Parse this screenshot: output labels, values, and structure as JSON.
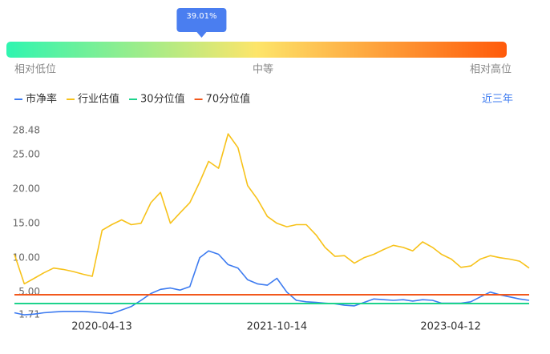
{
  "gauge": {
    "marker": {
      "value": 39.01,
      "label": "39.01%"
    },
    "low_label": "相对低位",
    "mid_label": "中等",
    "high_label": "相对高位"
  },
  "range_label": "近三年",
  "chart_data": {
    "type": "line",
    "x": [
      "2019-07-14",
      "2019-08-14",
      "2019-09-14",
      "2019-10-14",
      "2019-11-14",
      "2019-12-14",
      "2020-01-14",
      "2020-02-14",
      "2020-03-14",
      "2020-04-14",
      "2020-05-14",
      "2020-06-14",
      "2020-07-14",
      "2020-08-14",
      "2020-09-14",
      "2020-10-14",
      "2020-11-14",
      "2020-12-14",
      "2021-01-14",
      "2021-02-14",
      "2021-03-14",
      "2021-04-14",
      "2021-05-14",
      "2021-06-14",
      "2021-07-14",
      "2021-08-14",
      "2021-09-14",
      "2021-10-14",
      "2021-11-14",
      "2021-12-14",
      "2022-01-14",
      "2022-02-14",
      "2022-03-14",
      "2022-04-14",
      "2022-05-14",
      "2022-06-14",
      "2022-07-14",
      "2022-08-14",
      "2022-09-14",
      "2022-10-14",
      "2022-11-14",
      "2022-12-14",
      "2023-01-14",
      "2023-02-14",
      "2023-03-14",
      "2023-04-14",
      "2023-05-14",
      "2023-06-14",
      "2023-07-14",
      "2023-08-14",
      "2023-09-14",
      "2023-10-14",
      "2023-11-14",
      "2023-12-14"
    ],
    "series": [
      {
        "name": "市净率",
        "color": "#3d7bf0",
        "values": [
          2.0,
          1.7,
          1.8,
          2.0,
          2.1,
          2.2,
          2.2,
          2.2,
          2.1,
          2.0,
          1.9,
          2.4,
          2.9,
          3.8,
          4.8,
          5.4,
          5.6,
          5.3,
          5.8,
          10.0,
          11.0,
          10.5,
          9.0,
          8.5,
          6.8,
          6.2,
          6.0,
          7.0,
          5.0,
          3.8,
          3.6,
          3.5,
          3.4,
          3.3,
          3.1,
          3.0,
          3.5,
          4.0,
          3.9,
          3.8,
          3.9,
          3.7,
          3.9,
          3.8,
          3.4,
          3.4,
          3.4,
          3.6,
          4.3,
          5.0,
          4.6,
          4.3,
          4.0,
          3.8
        ]
      },
      {
        "name": "行业估值",
        "color": "#f7c21a",
        "values": [
          10.5,
          6.2,
          7.0,
          7.8,
          8.5,
          8.3,
          8.0,
          7.6,
          7.3,
          14.0,
          14.8,
          15.5,
          14.8,
          15.0,
          18.0,
          19.5,
          15.0,
          16.5,
          18.0,
          21.0,
          24.0,
          23.0,
          28.0,
          26.0,
          20.5,
          18.5,
          16.0,
          15.0,
          14.5,
          14.8,
          14.8,
          13.3,
          11.5,
          10.2,
          10.3,
          9.2,
          10.0,
          10.5,
          11.2,
          11.8,
          11.5,
          11.0,
          12.3,
          11.5,
          10.5,
          9.8,
          8.6,
          8.8,
          9.8,
          10.3,
          10.0,
          9.8,
          9.5,
          8.5
        ]
      }
    ],
    "reference_lines": [
      {
        "name": "30分位值",
        "color": "#1dd38c",
        "value": 3.34
      },
      {
        "name": "70分位值",
        "color": "#f2581c",
        "value": 4.62
      }
    ],
    "xlim": [
      "2019-07-14",
      "2023-12-14"
    ],
    "xticks": [
      "2020-04-13",
      "2021-10-14",
      "2023-04-12"
    ],
    "ylim": [
      1.71,
      28.48
    ],
    "yticks": [
      1.71,
      {
        "value": 5,
        "label": "5.00"
      },
      {
        "value": 10,
        "label": "10.00"
      },
      {
        "value": 15,
        "label": "15.00"
      },
      {
        "value": 20,
        "label": "20.00"
      },
      {
        "value": 25,
        "label": "25.00"
      },
      28.48
    ]
  }
}
